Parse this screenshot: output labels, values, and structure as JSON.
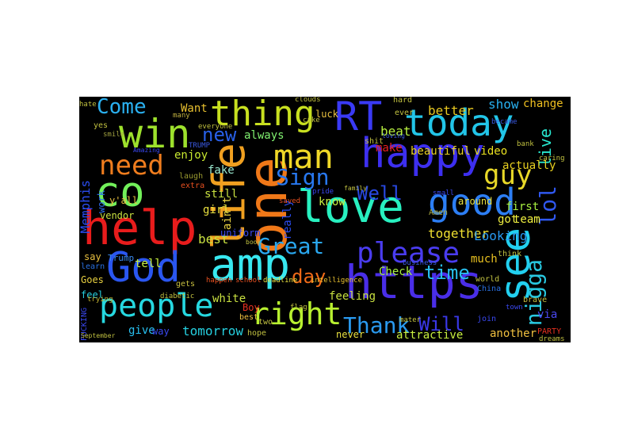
{
  "wordcloud": {
    "words": [
      {
        "text": "win",
        "color": "#9de12c"
      },
      {
        "text": "thing",
        "color": "#c8e020"
      },
      {
        "text": "RT",
        "color": "#3a3af5"
      },
      {
        "text": "today",
        "color": "#22c5e8"
      },
      {
        "text": "happy",
        "color": "#3d2ff0"
      },
      {
        "text": "life",
        "color": "#f0a020"
      },
      {
        "text": "one",
        "color": "#f07818"
      },
      {
        "text": "co",
        "color": "#72f05a"
      },
      {
        "text": "help",
        "color": "#e81c1c"
      },
      {
        "text": "love",
        "color": "#28f0c0"
      },
      {
        "text": "good",
        "color": "#2c7ef5"
      },
      {
        "text": "man",
        "color": "#f0d828"
      },
      {
        "text": "amp",
        "color": "#38e8f0"
      },
      {
        "text": "God",
        "color": "#2a56f0"
      },
      {
        "text": "https",
        "color": "#4a2ee8"
      },
      {
        "text": "see",
        "color": "#22d0f0"
      },
      {
        "text": "people",
        "color": "#26d8e0"
      },
      {
        "text": "right",
        "color": "#b8f030"
      },
      {
        "text": "Great",
        "color": "#2aa8f0"
      },
      {
        "text": "please",
        "color": "#4a3cf0"
      },
      {
        "text": "need",
        "color": "#f07d1e"
      },
      {
        "text": "guy",
        "color": "#e8d828"
      },
      {
        "text": "lol",
        "color": "#3058f0"
      },
      {
        "text": "Come",
        "color": "#2ab0f0"
      },
      {
        "text": "new",
        "color": "#2860e8"
      },
      {
        "text": "Sign",
        "color": "#2878f0"
      },
      {
        "text": "Thank",
        "color": "#2a9af0"
      },
      {
        "text": "nigga",
        "color": "#28c8e0"
      },
      {
        "text": "Well",
        "color": "#2848e0"
      },
      {
        "text": "time",
        "color": "#28c0f0"
      },
      {
        "text": "day",
        "color": "#f06a18"
      },
      {
        "text": "Will",
        "color": "#3a38e8"
      },
      {
        "text": "live",
        "color": "#28e8d0"
      },
      {
        "text": "better",
        "color": "#e8c820"
      },
      {
        "text": "show",
        "color": "#28b0f0"
      },
      {
        "text": "beat",
        "color": "#b8f040"
      },
      {
        "text": "Memphis",
        "color": "#2a4cf0"
      },
      {
        "text": "enjoy",
        "color": "#c8e830"
      },
      {
        "text": "fake",
        "color": "#9ae8d0"
      },
      {
        "text": "always",
        "color": "#80f070"
      },
      {
        "text": "Want",
        "color": "#e8c030"
      },
      {
        "text": "make",
        "color": "#e82020"
      },
      {
        "text": "beautiful",
        "color": "#e8d020"
      },
      {
        "text": "video",
        "color": "#e8e020"
      },
      {
        "text": "actually",
        "color": "#e8d020"
      },
      {
        "text": "change",
        "color": "#f0c020"
      },
      {
        "text": "together",
        "color": "#f0e030"
      },
      {
        "text": "first",
        "color": "#a8f040"
      },
      {
        "text": "team",
        "color": "#f0f040"
      },
      {
        "text": "got",
        "color": "#f0f040"
      },
      {
        "text": "Looking",
        "color": "#2898f0"
      },
      {
        "text": "much",
        "color": "#e8c020"
      },
      {
        "text": "Check",
        "color": "#a8f040"
      },
      {
        "text": "feeling",
        "color": "#c8e040"
      },
      {
        "text": "tomorrow",
        "color": "#26d0e0"
      },
      {
        "text": "give",
        "color": "#28c0f0"
      },
      {
        "text": "white",
        "color": "#c8e040"
      },
      {
        "text": "attractive",
        "color": "#c8f040"
      },
      {
        "text": "another",
        "color": "#f0c040"
      },
      {
        "text": "via",
        "color": "#4a48f0"
      },
      {
        "text": "tell",
        "color": "#c8f040"
      },
      {
        "text": "say",
        "color": "#e8c040"
      },
      {
        "text": "best",
        "color": "#c8e040"
      },
      {
        "text": "girl",
        "color": "#e8e040"
      },
      {
        "text": "still",
        "color": "#c8e040"
      },
      {
        "text": "ain't",
        "color": "#e8d040"
      },
      {
        "text": "really",
        "color": "#2a4cf0"
      },
      {
        "text": "know",
        "color": "#c8f040"
      },
      {
        "text": "vendor",
        "color": "#c8e040"
      },
      {
        "text": "work",
        "color": "#2a6cf0"
      },
      {
        "text": "y'all",
        "color": "#e8c040"
      },
      {
        "text": "Trump",
        "color": "#3a8af0"
      },
      {
        "text": "feel",
        "color": "#26d0e0"
      },
      {
        "text": "Goes",
        "color": "#e8d040"
      },
      {
        "text": "laugh",
        "color": "#9a9a30"
      },
      {
        "text": "around",
        "color": "#e8e040"
      },
      {
        "text": "Amen",
        "color": "#a8a840"
      },
      {
        "text": "hate",
        "color": "#c0c040"
      },
      {
        "text": "many",
        "color": "#c0b040"
      },
      {
        "text": "yes",
        "color": "#c0c040"
      },
      {
        "text": "smile",
        "color": "#a0a040"
      },
      {
        "text": "way",
        "color": "#3a48f0"
      },
      {
        "text": "learn",
        "color": "#2a70e0"
      },
      {
        "text": "best",
        "color": "#f0c040"
      },
      {
        "text": "Boy",
        "color": "#e83020"
      },
      {
        "text": "never",
        "color": "#e8e040"
      },
      {
        "text": "trying",
        "color": "#c0b030"
      },
      {
        "text": "extra",
        "color": "#e85020"
      },
      {
        "text": "gets",
        "color": "#c8c040"
      },
      {
        "text": "school",
        "color": "#e85020"
      },
      {
        "text": "deadline",
        "color": "#e8e040"
      },
      {
        "text": "intelligence",
        "color": "#e8c030"
      },
      {
        "text": "happen",
        "color": "#e85020"
      },
      {
        "text": "flag",
        "color": "#c0c040"
      },
      {
        "text": "world",
        "color": "#c0c040"
      },
      {
        "text": "China",
        "color": "#2a70e0"
      },
      {
        "text": "think",
        "color": "#c0c040"
      },
      {
        "text": "join",
        "color": "#3a48f0"
      },
      {
        "text": "brave",
        "color": "#c8c040"
      },
      {
        "text": "PARTY",
        "color": "#e83020"
      },
      {
        "text": "TRUMP",
        "color": "#3a58e0"
      },
      {
        "text": "dreams",
        "color": "#c0c040"
      },
      {
        "text": "uniform",
        "color": "#3a4af0"
      },
      {
        "text": "everyone",
        "color": "#c0c040"
      },
      {
        "text": "luck",
        "color": "#e8c040"
      },
      {
        "text": "shit",
        "color": "#c0c040"
      },
      {
        "text": "hard",
        "color": "#c0c040"
      },
      {
        "text": "ever",
        "color": "#c0c040"
      },
      {
        "text": "clouds",
        "color": "#c0c040"
      },
      {
        "text": "family",
        "color": "#c0c040"
      },
      {
        "text": "loving",
        "color": "#3a58e0"
      },
      {
        "text": "small",
        "color": "#3a48f0"
      },
      {
        "text": "business",
        "color": "#3a58e0"
      },
      {
        "text": "bank",
        "color": "#c0c040"
      },
      {
        "text": "caring",
        "color": "#c0c040"
      },
      {
        "text": "saved",
        "color": "#e85020"
      },
      {
        "text": "pride",
        "color": "#3a48f0"
      },
      {
        "text": "cake",
        "color": "#c0c040"
      },
      {
        "text": "became",
        "color": "#3a58e0"
      },
      {
        "text": "FUCKING",
        "color": "#3a48f0"
      },
      {
        "text": "diabetic",
        "color": "#c0c040"
      },
      {
        "text": "hope",
        "color": "#c0c040"
      },
      {
        "text": "mater",
        "color": "#c0c040"
      },
      {
        "text": "town",
        "color": "#3a48f0"
      },
      {
        "text": "September",
        "color": "#c0c040"
      },
      {
        "text": "book",
        "color": "#c0c040"
      },
      {
        "text": "Amazing",
        "color": "#3a48f0"
      },
      {
        "text": "two",
        "color": "#c0c040"
      }
    ]
  }
}
